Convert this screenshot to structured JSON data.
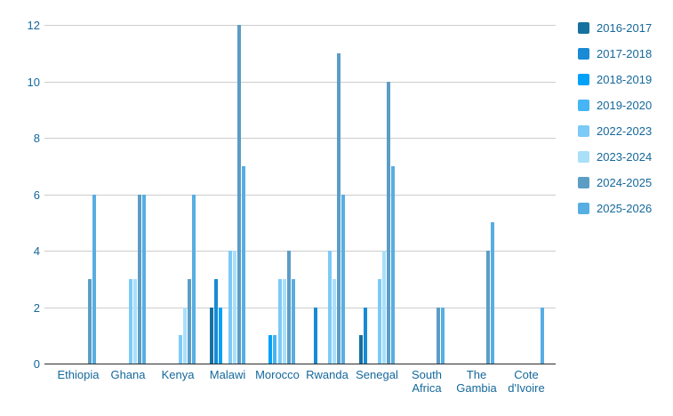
{
  "chart_data": {
    "type": "bar",
    "title": "",
    "xlabel": "",
    "ylabel": "",
    "categories": [
      "Ethiopia",
      "Ghana",
      "Kenya",
      "Malawi",
      "Morocco",
      "Rwanda",
      "Senegal",
      "South Africa",
      "The Gambia",
      "Cote d'Ivoire"
    ],
    "series": [
      {
        "name": "2016-2017",
        "color": "#16719f",
        "values": [
          0,
          0,
          0,
          2,
          0,
          0,
          1,
          0,
          0,
          0
        ]
      },
      {
        "name": "2017-2018",
        "color": "#188bd4",
        "values": [
          0,
          0,
          0,
          3,
          0,
          2,
          2,
          0,
          0,
          0
        ]
      },
      {
        "name": "2018-2019",
        "color": "#03a1f9",
        "values": [
          0,
          0,
          0,
          2,
          1,
          0,
          0,
          0,
          0,
          0
        ]
      },
      {
        "name": "2019-2020",
        "color": "#46b5f5",
        "values": [
          0,
          0,
          0,
          0,
          1,
          0,
          0,
          0,
          0,
          0
        ]
      },
      {
        "name": "2022-2023",
        "color": "#7ccaf7",
        "values": [
          0,
          3,
          1,
          4,
          3,
          4,
          3,
          0,
          0,
          0
        ]
      },
      {
        "name": "2023-2024",
        "color": "#aadffa",
        "values": [
          0,
          3,
          2,
          4,
          3,
          3,
          4,
          0,
          0,
          0
        ]
      },
      {
        "name": "2024-2025",
        "color": "#5c9dc6",
        "values": [
          3,
          6,
          3,
          12,
          4,
          11,
          10,
          2,
          4,
          0
        ]
      },
      {
        "name": "2025-2026",
        "color": "#57aee2",
        "values": [
          6,
          6,
          6,
          7,
          3,
          6,
          7,
          2,
          5,
          2
        ]
      }
    ],
    "ylim": [
      0,
      12
    ],
    "yticks": [
      0,
      2,
      4,
      6,
      8,
      10,
      12
    ],
    "grid": true,
    "legend_position": "right",
    "colors": {
      "axis_label": "#15689b",
      "gridline": "#cccccc",
      "baseline": "#2b2b2b",
      "background": "#ffffff"
    }
  }
}
